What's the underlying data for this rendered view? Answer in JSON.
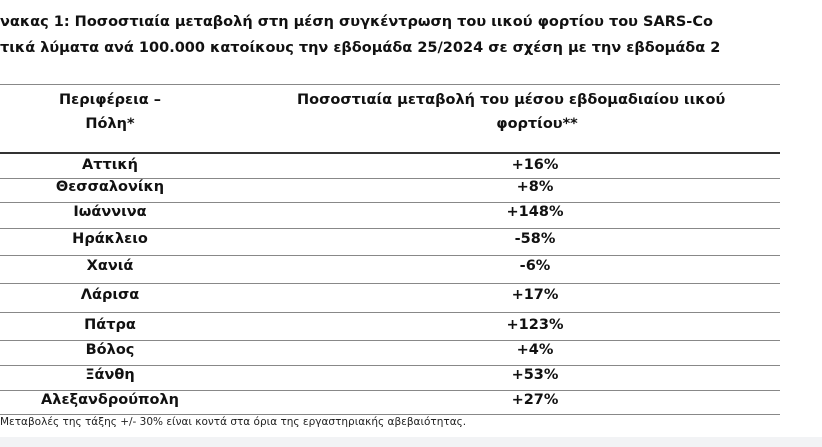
{
  "title": [
    "νακας 1: Ποσοστιαία μεταβολή στη μέση συγκέντρωση του ιικού φορτίου του SARS-Co",
    "τικά λύματα ανά 100.000 κατοίκους την εβδομάδα 25/2024 σε σχέση με την εβδομάδα 2"
  ],
  "table": {
    "header": [
      [
        "Περιφέρεια –",
        "Πόλη*"
      ],
      [
        "Ποσοστιαία μεταβολή του μέσου εβδομαδιαίου ιικού",
        "φορτίου**"
      ]
    ],
    "rows": [
      [
        "Αττική",
        "+16%"
      ],
      [
        "Θεσσαλονίκη",
        "+8%"
      ],
      [
        "Ιωάννινα",
        "+148%"
      ],
      [
        "Ηράκλειο",
        "-58%"
      ],
      [
        "Χανιά",
        "-6%"
      ],
      [
        "Λάρισα",
        "+17%"
      ],
      [
        "Πάτρα",
        "+123%"
      ],
      [
        "Βόλος",
        "+4%"
      ],
      [
        "Ξάνθη",
        "+53%"
      ],
      [
        "Αλεξανδρούπολη",
        "+27%"
      ]
    ]
  },
  "footnote": "Μεταβολές της τάξης +/- 30% είναι κοντά στα όρια της εργαστηριακής αβεβαιότητας."
}
